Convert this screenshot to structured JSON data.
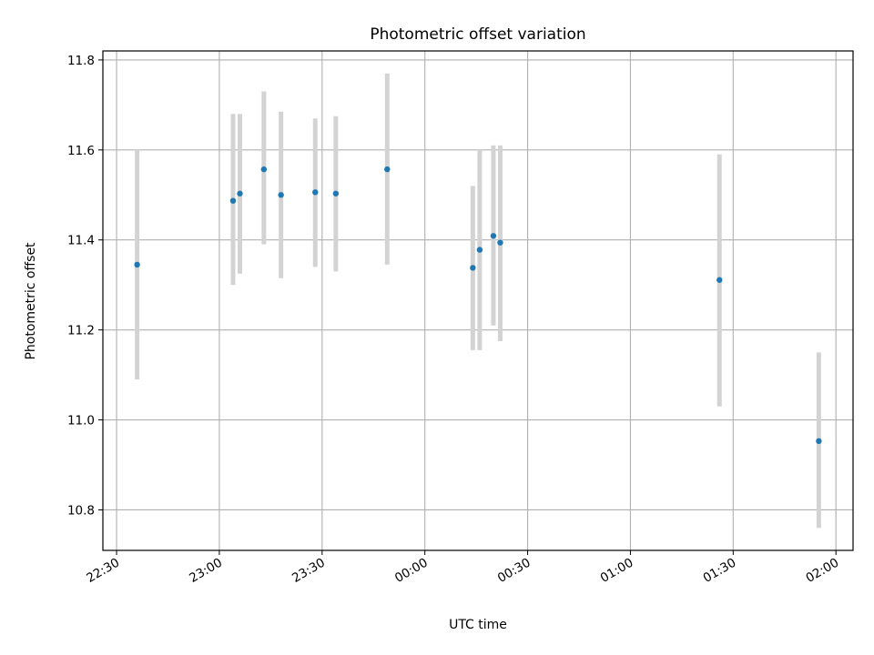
{
  "chart_data": {
    "type": "scatter",
    "title": "Photometric offset variation",
    "xlabel": "UTC time",
    "ylabel": "Photometric offset",
    "x_scale": "time",
    "xlim": [
      "22:26",
      "02:05"
    ],
    "ylim": [
      10.71,
      11.82
    ],
    "x_ticks": [
      "22:30",
      "23:00",
      "23:30",
      "00:00",
      "00:30",
      "01:00",
      "01:30",
      "02:00"
    ],
    "y_ticks": [
      "10.8",
      "11.0",
      "11.2",
      "11.4",
      "11.6",
      "11.8"
    ],
    "grid": true,
    "series": [
      {
        "marker_color": "#1f77b4",
        "errorbar_color": "#d3d3d3",
        "points": [
          {
            "x": "22:36",
            "y": 11.345,
            "y_low": 11.09,
            "y_high": 11.6
          },
          {
            "x": "23:04",
            "y": 11.487,
            "y_low": 11.3,
            "y_high": 11.68
          },
          {
            "x": "23:06",
            "y": 11.503,
            "y_low": 11.325,
            "y_high": 11.68
          },
          {
            "x": "23:13",
            "y": 11.557,
            "y_low": 11.39,
            "y_high": 11.73
          },
          {
            "x": "23:18",
            "y": 11.5,
            "y_low": 11.315,
            "y_high": 11.685
          },
          {
            "x": "23:28",
            "y": 11.506,
            "y_low": 11.34,
            "y_high": 11.67
          },
          {
            "x": "23:34",
            "y": 11.503,
            "y_low": 11.33,
            "y_high": 11.675
          },
          {
            "x": "23:49",
            "y": 11.557,
            "y_low": 11.345,
            "y_high": 11.77
          },
          {
            "x": "00:14",
            "y": 11.338,
            "y_low": 11.155,
            "y_high": 11.52
          },
          {
            "x": "00:16",
            "y": 11.378,
            "y_low": 11.155,
            "y_high": 11.6
          },
          {
            "x": "00:20",
            "y": 11.409,
            "y_low": 11.21,
            "y_high": 11.61
          },
          {
            "x": "00:22",
            "y": 11.394,
            "y_low": 11.175,
            "y_high": 11.61
          },
          {
            "x": "01:26",
            "y": 11.311,
            "y_low": 11.03,
            "y_high": 11.59
          },
          {
            "x": "01:55",
            "y": 10.953,
            "y_low": 10.76,
            "y_high": 11.15
          }
        ]
      }
    ]
  }
}
